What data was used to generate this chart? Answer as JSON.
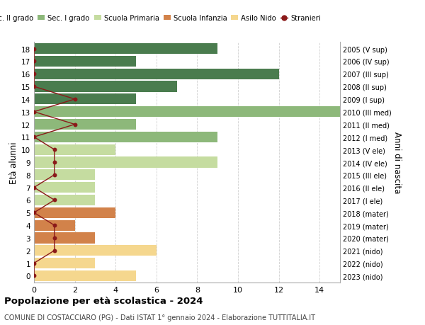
{
  "ages": [
    18,
    17,
    16,
    15,
    14,
    13,
    12,
    11,
    10,
    9,
    8,
    7,
    6,
    5,
    4,
    3,
    2,
    1,
    0
  ],
  "right_labels": [
    "2005 (V sup)",
    "2006 (IV sup)",
    "2007 (III sup)",
    "2008 (II sup)",
    "2009 (I sup)",
    "2010 (III med)",
    "2011 (II med)",
    "2012 (I med)",
    "2013 (V ele)",
    "2014 (IV ele)",
    "2015 (III ele)",
    "2016 (II ele)",
    "2017 (I ele)",
    "2018 (mater)",
    "2019 (mater)",
    "2020 (mater)",
    "2021 (nido)",
    "2022 (nido)",
    "2023 (nido)"
  ],
  "bar_values": [
    9,
    5,
    12,
    7,
    5,
    15,
    5,
    9,
    4,
    9,
    3,
    3,
    3,
    4,
    2,
    3,
    6,
    3,
    5
  ],
  "bar_colors": [
    "#4a7c4e",
    "#4a7c4e",
    "#4a7c4e",
    "#4a7c4e",
    "#4a7c4e",
    "#8db87a",
    "#8db87a",
    "#8db87a",
    "#c5dca0",
    "#c5dca0",
    "#c5dca0",
    "#c5dca0",
    "#c5dca0",
    "#d2824a",
    "#d2824a",
    "#d2824a",
    "#f5d78e",
    "#f5d78e",
    "#f5d78e"
  ],
  "stranieri_values": [
    0,
    0,
    0,
    0,
    2,
    0,
    2,
    0,
    1,
    1,
    1,
    0,
    1,
    0,
    1,
    1,
    1,
    0,
    0
  ],
  "stranieri_color": "#8b1a1a",
  "title": "Popolazione per età scolastica - 2024",
  "subtitle": "COMUNE DI COSTACCIARO (PG) - Dati ISTAT 1° gennaio 2024 - Elaborazione TUTTITALIA.IT",
  "ylabel": "Età alunni",
  "right_ylabel": "Anni di nascita",
  "xlabel_ticks": [
    0,
    2,
    4,
    6,
    8,
    10,
    12,
    14
  ],
  "xlim": [
    0,
    15
  ],
  "ylim": [
    -0.55,
    18.55
  ],
  "legend_labels": [
    "Sec. II grado",
    "Sec. I grado",
    "Scuola Primaria",
    "Scuola Infanzia",
    "Asilo Nido",
    "Stranieri"
  ],
  "legend_colors": [
    "#4a7c4e",
    "#8db87a",
    "#c5dca0",
    "#d2824a",
    "#f5d78e",
    "#8b1a1a"
  ],
  "bg_color": "#ffffff",
  "grid_color": "#d0d0d0"
}
